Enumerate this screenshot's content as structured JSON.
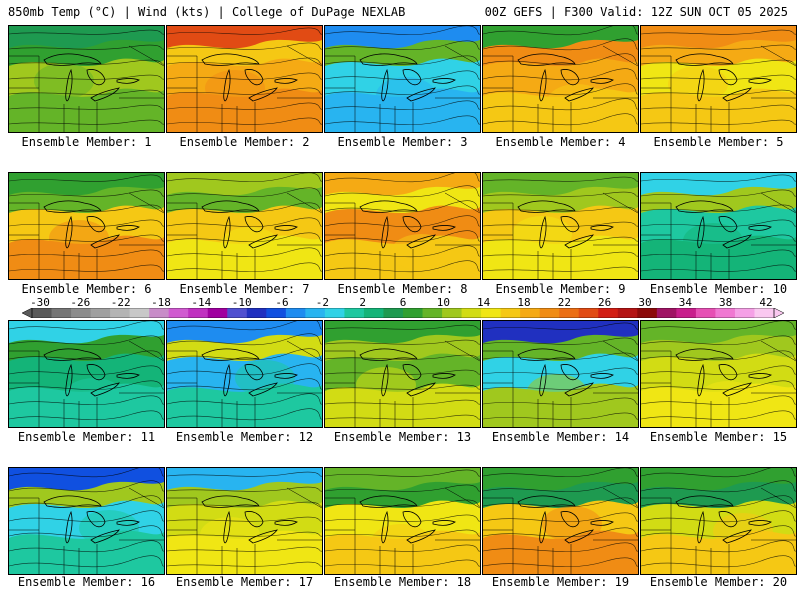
{
  "header": {
    "left": "850mb Temp (°C) | Wind (kts) | College of DuPage NEXLAB",
    "right": "00Z GEFS | F300 Valid: 12Z SUN OCT 05 2025"
  },
  "colorbar": {
    "ticks": [
      "-30",
      "-26",
      "-22",
      "-18",
      "-14",
      "-10",
      "-6",
      "-2",
      "2",
      "6",
      "10",
      "14",
      "18",
      "22",
      "26",
      "30",
      "34",
      "38",
      "42"
    ],
    "colors": [
      "#5a5a5a",
      "#767676",
      "#8c8c8c",
      "#a0a0a0",
      "#b4b4b4",
      "#c8c8c8",
      "#c88cc8",
      "#d05ad0",
      "#c030c0",
      "#a000a0",
      "#5050d0",
      "#2030c0",
      "#1050e0",
      "#1e8cf0",
      "#28b4f0",
      "#30d2e6",
      "#1ec8a0",
      "#14b478",
      "#1e9a50",
      "#30a030",
      "#64b428",
      "#a0c81e",
      "#d2dc14",
      "#f0e614",
      "#f5c814",
      "#f5aa14",
      "#f08c14",
      "#eb6e14",
      "#e14b14",
      "#d21e14",
      "#b41414",
      "#8c0a0a",
      "#a01464",
      "#c81e8c",
      "#e650b4",
      "#f078d2",
      "#f5a0e6",
      "#fac8f0"
    ]
  },
  "panels": [
    {
      "label": "Ensemble Member: 1",
      "c1": "#1e9a50",
      "c2": "#a0c81e",
      "c3": "#64b428",
      "c4": "#30a030"
    },
    {
      "label": "Ensemble Member: 2",
      "c1": "#e14b14",
      "c2": "#f5aa14",
      "c3": "#f08c14",
      "c4": "#f5c814"
    },
    {
      "label": "Ensemble Member: 3",
      "c1": "#1e8cf0",
      "c2": "#30d2e6",
      "c3": "#28b4f0",
      "c4": "#64b428"
    },
    {
      "label": "Ensemble Member: 4",
      "c1": "#30a030",
      "c2": "#f5aa14",
      "c3": "#f5c814",
      "c4": "#f08c14"
    },
    {
      "label": "Ensemble Member: 5",
      "c1": "#f08c14",
      "c2": "#f0e614",
      "c3": "#f5c814",
      "c4": "#f5aa14"
    },
    {
      "label": "Ensemble Member: 6",
      "c1": "#30a030",
      "c2": "#f5c814",
      "c3": "#f08c14",
      "c4": "#64b428"
    },
    {
      "label": "Ensemble Member: 7",
      "c1": "#a0c81e",
      "c2": "#f5c814",
      "c3": "#f0e614",
      "c4": "#64b428"
    },
    {
      "label": "Ensemble Member: 8",
      "c1": "#f5aa14",
      "c2": "#f08c14",
      "c3": "#f5c814",
      "c4": "#f0e614"
    },
    {
      "label": "Ensemble Member: 9",
      "c1": "#64b428",
      "c2": "#f5c814",
      "c3": "#f0e614",
      "c4": "#a0c81e"
    },
    {
      "label": "Ensemble Member: 10",
      "c1": "#30d2e6",
      "c2": "#1ec8a0",
      "c3": "#14b478",
      "c4": "#a0c81e"
    },
    {
      "label": "Ensemble Member: 11",
      "c1": "#30d2e6",
      "c2": "#14b478",
      "c3": "#1ec8a0",
      "c4": "#30a030"
    },
    {
      "label": "Ensemble Member: 12",
      "c1": "#1e8cf0",
      "c2": "#28b4f0",
      "c3": "#1ec8a0",
      "c4": "#d2dc14"
    },
    {
      "label": "Ensemble Member: 13",
      "c1": "#30a030",
      "c2": "#64b428",
      "c3": "#d2dc14",
      "c4": "#a0c81e"
    },
    {
      "label": "Ensemble Member: 14",
      "c1": "#2030c0",
      "c2": "#30d2e6",
      "c3": "#a0c81e",
      "c4": "#64b428"
    },
    {
      "label": "Ensemble Member: 15",
      "c1": "#64b428",
      "c2": "#d2dc14",
      "c3": "#f0e614",
      "c4": "#a0c81e"
    },
    {
      "label": "Ensemble Member: 16",
      "c1": "#1050e0",
      "c2": "#30d2e6",
      "c3": "#1ec8a0",
      "c4": "#a0c81e"
    },
    {
      "label": "Ensemble Member: 17",
      "c1": "#28b4f0",
      "c2": "#d2dc14",
      "c3": "#f0e614",
      "c4": "#a0c81e"
    },
    {
      "label": "Ensemble Member: 18",
      "c1": "#64b428",
      "c2": "#f0e614",
      "c3": "#f5c814",
      "c4": "#30a030"
    },
    {
      "label": "Ensemble Member: 19",
      "c1": "#30a030",
      "c2": "#f5c814",
      "c3": "#f08c14",
      "c4": "#1e9a50"
    },
    {
      "label": "Ensemble Member: 20",
      "c1": "#30a030",
      "c2": "#d2dc14",
      "c3": "#f5c814",
      "c4": "#1e9a50"
    }
  ]
}
